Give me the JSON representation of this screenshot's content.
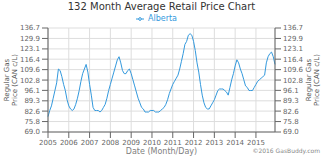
{
  "chart_data": {
    "type": "line",
    "title": "132 Month Average Retail Price Chart",
    "xlabel": "Date (Month/Day)",
    "ylabel": "Regular Gas\nPrice (CAN c/L)",
    "y2label": "Regular Gas\nPrice (CAN c/L)",
    "annotations": [
      "©2016 GasBuddy.com"
    ],
    "categories": [
      "2005",
      null,
      null,
      null,
      null,
      null,
      null,
      null,
      null,
      null,
      null,
      null,
      "2006",
      null,
      null,
      null,
      null,
      null,
      null,
      null,
      null,
      null,
      null,
      null,
      "2007",
      null,
      null,
      null,
      null,
      null,
      null,
      null,
      null,
      null,
      null,
      null,
      "2008",
      null,
      null,
      null,
      null,
      null,
      null,
      null,
      null,
      null,
      null,
      null,
      "2009",
      null,
      null,
      null,
      null,
      null,
      null,
      null,
      null,
      null,
      null,
      null,
      "2010",
      null,
      null,
      null,
      null,
      null,
      null,
      null,
      null,
      null,
      null,
      null,
      "2011",
      null,
      null,
      null,
      null,
      null,
      null,
      null,
      null,
      null,
      null,
      null,
      "2012",
      null,
      null,
      null,
      null,
      null,
      null,
      null,
      null,
      null,
      null,
      null,
      "2013",
      null,
      null,
      null,
      null,
      null,
      null,
      null,
      null,
      null,
      null,
      null,
      "2014",
      null,
      null,
      null,
      null,
      null,
      null,
      null,
      null,
      null,
      null,
      null,
      "2015",
      null,
      null,
      null,
      null,
      null,
      null,
      null,
      null,
      null,
      null,
      null
    ],
    "series": [
      {
        "name": "Alberta",
        "color": "#3399dd",
        "values": [
          79,
          83,
          86,
          91,
          96,
          101,
          110,
          109,
          105,
          100,
          96,
          90,
          86,
          84,
          83,
          84,
          87,
          91,
          96,
          102,
          107,
          110,
          113,
          108,
          100,
          93,
          85,
          83,
          83,
          83,
          82,
          83,
          85,
          87,
          91,
          96,
          100,
          104,
          108,
          112,
          116,
          118,
          114,
          109,
          107,
          107,
          109,
          110,
          107,
          103,
          99,
          95,
          91,
          88,
          85,
          84,
          82,
          82,
          82,
          83,
          83,
          83,
          82,
          82,
          82,
          83,
          84,
          85,
          87,
          90,
          94,
          97,
          100,
          102,
          104,
          106,
          110,
          115,
          120,
          126,
          128,
          132,
          133,
          132,
          128,
          122,
          114,
          108,
          100,
          93,
          88,
          85,
          84,
          84,
          86,
          88,
          90,
          93,
          96,
          97,
          97,
          97,
          96,
          95,
          93,
          98,
          103,
          107,
          112,
          116,
          114,
          110,
          107,
          103,
          99,
          98,
          96,
          96,
          96,
          98,
          100,
          102,
          103,
          104,
          105,
          106,
          114,
          118,
          120,
          121,
          118,
          113
        ]
      }
    ],
    "ylim": [
      69.0,
      136.7
    ],
    "yticks": [
      {
        "value": 69.0,
        "label": "69.0"
      },
      75.8,
      82.6,
      89.3,
      96.1,
      102.8,
      109.6,
      116.4,
      123.1,
      129.9,
      136.7
    ],
    "y2lim": [
      69.0,
      136.7
    ],
    "y2ticks": [
      {
        "value": 69.0,
        "label": "69.0"
      },
      75.8,
      82.6,
      89.3,
      96.1,
      102.8,
      109.6,
      116.4,
      123.1,
      129.9,
      136.7
    ],
    "grid": true,
    "legend": "upper center"
  }
}
